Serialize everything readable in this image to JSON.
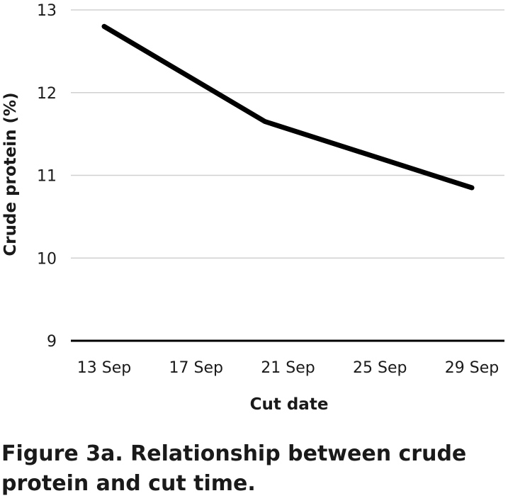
{
  "caption": "Figure 3a. Relationship between crude protein and cut time.",
  "chart_data": {
    "type": "line",
    "title": "",
    "xlabel": "Cut date",
    "ylabel": "Crude protein (%)",
    "x_ticks": [
      "13 Sep",
      "17 Sep",
      "21 Sep",
      "25 Sep",
      "29 Sep"
    ],
    "y_ticks": [
      9,
      10,
      11,
      12,
      13
    ],
    "ylim": [
      9,
      13
    ],
    "xlim": [
      "13 Sep",
      "29 Sep"
    ],
    "grid": true,
    "series": [
      {
        "color": "#000000",
        "points": [
          {
            "x": "13 Sep",
            "y": 12.8
          },
          {
            "x": "20 Sep",
            "y": 11.65
          },
          {
            "x": "29 Sep",
            "y": 10.85
          }
        ]
      }
    ]
  }
}
